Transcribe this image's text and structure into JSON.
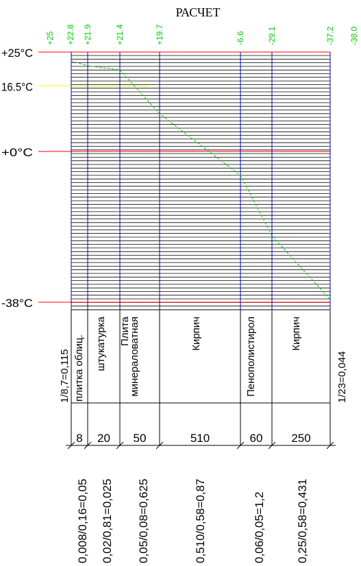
{
  "title": "РАСЧЕТ",
  "temp_levels": [
    {
      "label": "+25°C",
      "value": 25,
      "color": "#ff0000"
    },
    {
      "label": "16.5°C",
      "value": 16.5,
      "color": "#ffff00"
    },
    {
      "label": "+0°C",
      "value": 0,
      "color": "#ff0000"
    },
    {
      "label": "-38°C",
      "value": -38,
      "color": "#ff0000"
    }
  ],
  "boundary_temps": [
    "+25",
    "+22.8",
    "+21.9",
    "+21.4",
    "+19.7",
    "-6.6",
    "-29.1",
    "-37.2",
    "-38.0"
  ],
  "left_resistance": "1/8,7=0,115",
  "right_resistance": "1/23=0,044",
  "layers": [
    {
      "name": "плитка облиц.",
      "thickness": "8",
      "resistance": "0,008/0,16=0,05"
    },
    {
      "name": "штукатурка",
      "thickness": "20",
      "resistance": "0,02/0,81=0,025"
    },
    {
      "name": "Плита минераловатная",
      "thickness": "50",
      "resistance": "0,05/0,08=0,625"
    },
    {
      "name": "Кирпич",
      "thickness": "510",
      "resistance": "0,510/0,58=0,87"
    },
    {
      "name": "Пенополистирол",
      "thickness": "60",
      "resistance": "0,06/0,05=1,2"
    },
    {
      "name": "Кирпич",
      "thickness": "250",
      "resistance": "0,25/0,58=0,431"
    }
  ],
  "colors": {
    "grid": "#000000",
    "boundary": "#0000cc",
    "level": "#ff0000",
    "dew": "#ffff00",
    "curve": "#00cc00"
  }
}
